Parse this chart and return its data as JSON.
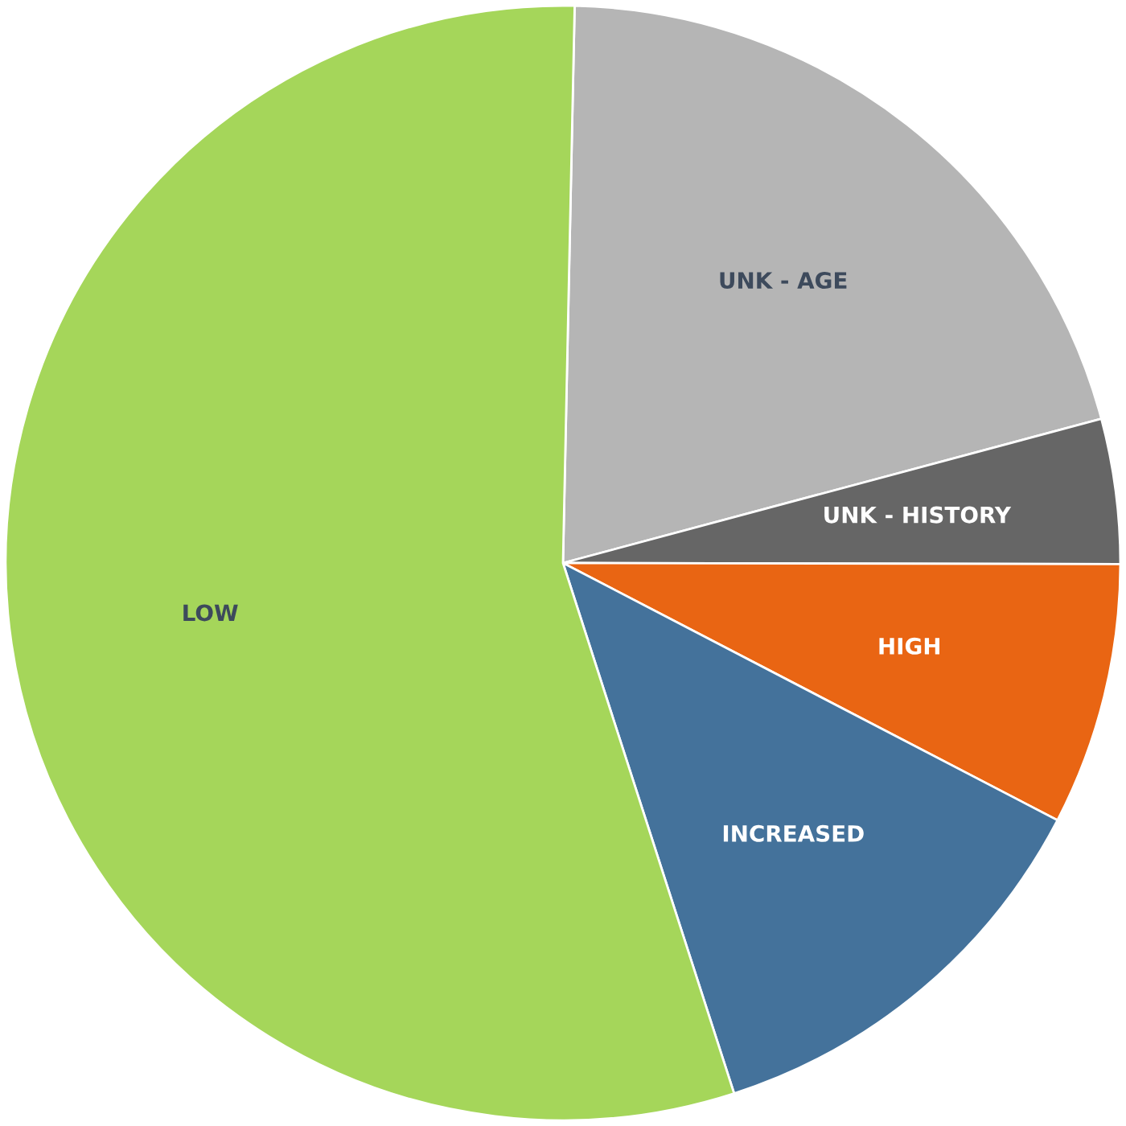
{
  "chart_data": {
    "type": "pie",
    "categories": [
      "UNK - AGE",
      "UNK - HISTORY",
      "HIGH",
      "INCREASED",
      "LOW"
    ],
    "values": [
      20.5,
      4.2,
      7.6,
      12.4,
      55.3
    ],
    "colors": [
      "#b5b5b5",
      "#666666",
      "#e96513",
      "#44729b",
      "#a5d65a"
    ]
  }
}
